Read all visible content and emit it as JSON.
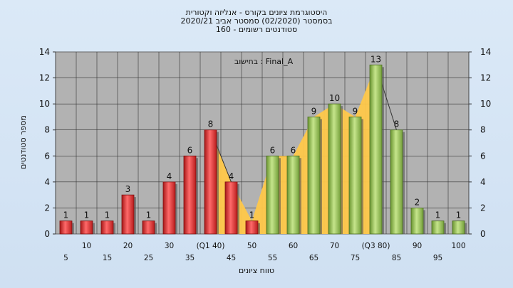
{
  "header": {
    "line1": "היסטוגרמת ציונים בקורס - אנליזה וקטורית",
    "line2": "בסמסטר  (02/2020)  סמסטר אביב 2020/21",
    "line3": "סטודנטים רשומים - 160"
  },
  "legend_text": "בחישוב : Final_A",
  "chart_data": {
    "type": "bar",
    "title": "היסטוגרמת ציונים בקורס - אנליזה וקטורית",
    "ylabel": "מספר סטודנטים",
    "xlabel": "טווח ציונים",
    "ylim": [
      0,
      14
    ],
    "yticks": [
      0,
      2,
      4,
      6,
      8,
      10,
      12,
      14
    ],
    "grid": true,
    "categories": [
      "5",
      "10",
      "15",
      "20",
      "25",
      "30",
      "35",
      "(Q1 40)",
      "45",
      "50",
      "55",
      "60",
      "65",
      "70",
      "75",
      "(Q3 80)",
      "85",
      "90",
      "95",
      "100"
    ],
    "values": [
      1,
      1,
      1,
      3,
      1,
      4,
      6,
      8,
      4,
      1,
      6,
      6,
      9,
      10,
      9,
      13,
      8,
      2,
      1,
      1
    ],
    "colors": {
      "red": "#e23a3a",
      "green": "#94c05a",
      "area": "#ffc84a"
    }
  }
}
